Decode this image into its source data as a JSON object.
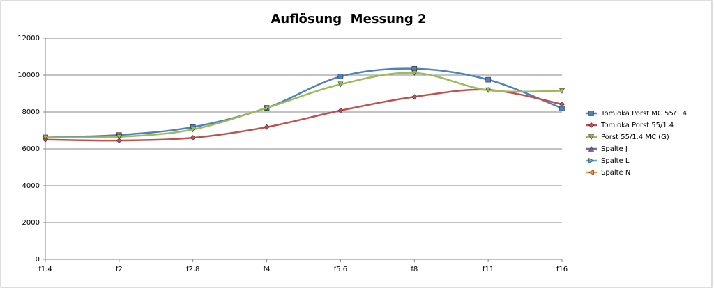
{
  "chart_data": {
    "type": "line",
    "title": "Auflösung  Messung 2",
    "categories": [
      "f1.4",
      "f2",
      "f2.8",
      "f4",
      "f5.6",
      "f8",
      "f11",
      "f16"
    ],
    "series": [
      {
        "name": "Tomioka Porst MC 55/1.4",
        "color": "#4f81bd",
        "marker": "square",
        "values": [
          6620,
          6750,
          7180,
          8220,
          9920,
          10350,
          9750,
          8200
        ]
      },
      {
        "name": "Tomioka Porst 55/1.4",
        "color": "#c0504d",
        "marker": "diamond",
        "values": [
          6500,
          6450,
          6600,
          7180,
          8080,
          8820,
          9200,
          8420
        ]
      },
      {
        "name": "Porst 55/1.4 MC (G)",
        "color": "#9bbb59",
        "marker": "triangle-down",
        "values": [
          6620,
          6650,
          7050,
          8220,
          9500,
          10120,
          9180,
          9150
        ]
      },
      {
        "name": "Spalte J",
        "color": "#8064a2",
        "marker": "triangle-up",
        "values": [
          null,
          null,
          null,
          null,
          null,
          null,
          null,
          null
        ]
      },
      {
        "name": "Spalte L",
        "color": "#4bacc6",
        "marker": "triangle-right",
        "values": [
          null,
          null,
          null,
          null,
          null,
          null,
          null,
          null
        ]
      },
      {
        "name": "Spalte N",
        "color": "#f79646",
        "marker": "triangle-left",
        "values": [
          null,
          null,
          null,
          null,
          null,
          null,
          null,
          null
        ]
      }
    ],
    "ylim": [
      0,
      12000
    ],
    "yticks": [
      0,
      2000,
      4000,
      6000,
      8000,
      10000,
      12000
    ],
    "grid": true,
    "smooth": true,
    "legend": "right"
  }
}
